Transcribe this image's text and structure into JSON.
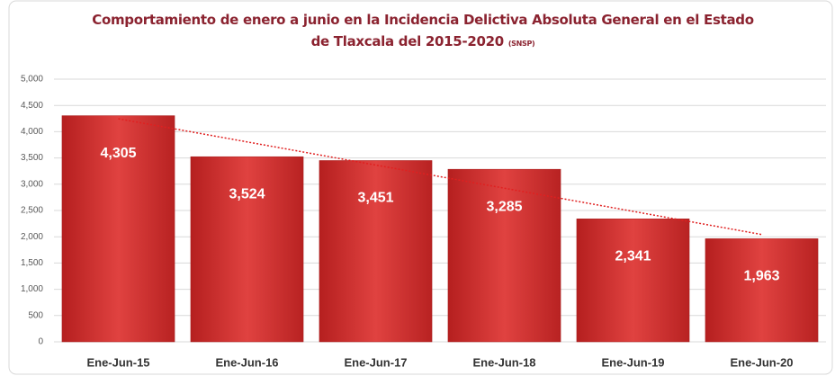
{
  "chart_data": {
    "type": "bar",
    "title": "Comportamiento de enero a junio en la Incidencia Delictiva Absoluta General en el Estado de Tlaxcala del 2015-2020",
    "subtitle": "(SNSP)",
    "categories": [
      "Ene-Jun-15",
      "Ene-Jun-16",
      "Ene-Jun-17",
      "Ene-Jun-18",
      "Ene-Jun-19",
      "Ene-Jun-20"
    ],
    "values": [
      4305,
      3524,
      3451,
      3285,
      2341,
      1963
    ],
    "value_labels": [
      "4,305",
      "3,524",
      "3,451",
      "3,285",
      "2,341",
      "1,963"
    ],
    "color": "#d3302f",
    "ylim": [
      0,
      5000
    ],
    "yticks": [
      0,
      500,
      {
        "value": 1000,
        "label": "1,000"
      },
      {
        "value": 1500,
        "label": "1,500"
      },
      {
        "value": 2000,
        "label": "2,000"
      },
      {
        "value": 2500,
        "label": "2,500"
      },
      {
        "value": 3000,
        "label": "3,000"
      },
      {
        "value": 3500,
        "label": "3,500"
      },
      {
        "value": 4000,
        "label": "4,000"
      },
      {
        "value": 4500,
        "label": "4,500"
      },
      {
        "value": 5000,
        "label": "5,000"
      }
    ],
    "grid": true,
    "trendline": true
  }
}
